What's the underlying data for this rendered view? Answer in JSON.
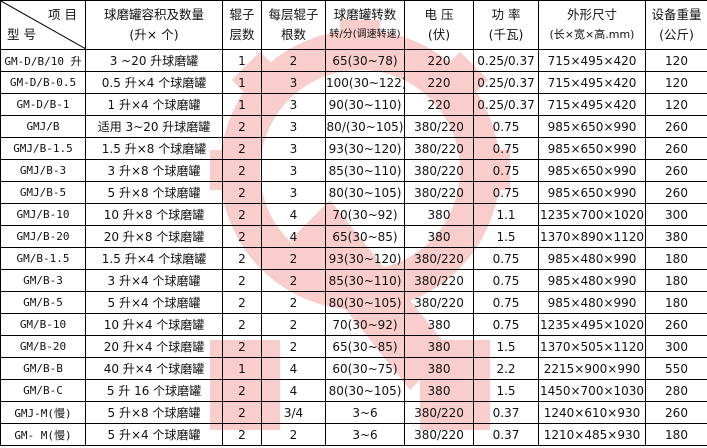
{
  "header": {
    "corner_top": "项 目",
    "corner_bottom": "型 号",
    "columns": [
      [
        "球磨罐容积及数量",
        "(升× 个)"
      ],
      [
        "辊子",
        "层数"
      ],
      [
        "每层辊子",
        "根数"
      ],
      [
        "球磨罐转数",
        "转/分(调速转速)"
      ],
      [
        "电 压",
        "(伏)"
      ],
      [
        "功 率",
        "(千瓦)"
      ],
      [
        "外形尺寸",
        "(长×宽×高.mm)"
      ],
      [
        "设备重量",
        "(公斤)"
      ]
    ]
  },
  "rows": [
    [
      "GM-D/B/10 升",
      "3 ~20 升球磨罐",
      "1",
      "2",
      "65(30~78)",
      "220",
      "0.25/0.37",
      "715×495×420",
      "120"
    ],
    [
      "GM-D/B-0.5",
      "0.5 升×4 个球磨罐",
      "1",
      "3",
      "100(30~122)",
      "220",
      "0.25/0.37",
      "715×495×420",
      "120"
    ],
    [
      "GM-D/B-1",
      "1 升×4 个球磨罐",
      "1",
      "3",
      "90(30~110)",
      "220",
      "0.25/0.37",
      "715×495×420",
      "120"
    ],
    [
      "GMJ/B",
      "适用 3~20 升球磨罐",
      "2",
      "3",
      "80/(30~105)",
      "380/220",
      "0.75",
      "985×650×990",
      "260"
    ],
    [
      "GMJ/B-1.5",
      "1.5 升×8 个球磨罐",
      "2",
      "3",
      "93(30~120)",
      "380/220",
      "0.75",
      "985×650×990",
      "260"
    ],
    [
      "GMJ/B-3",
      "3 升×8 个球磨罐",
      "2",
      "3",
      "85(30~110)",
      "380/220",
      "0.75",
      "985×650×990",
      "260"
    ],
    [
      "GMJ/B-5",
      "5 升×8 个球磨罐",
      "2",
      "3",
      "80(30~105)",
      "380/220",
      "0.75",
      "985×650×990",
      "260"
    ],
    [
      "GMJ/B-10",
      "10 升×8 个球磨罐",
      "2",
      "4",
      "70(30~92)",
      "380",
      "1.1",
      "1235×700×1020",
      "300"
    ],
    [
      "GMJ/B-20",
      "20 升×8 个球磨罐",
      "2",
      "4",
      "65(30~85)",
      "380",
      "1.5",
      "1370×890×1120",
      "380"
    ],
    [
      "GM/B-1.5",
      "1.5 升×4 个球磨罐",
      "2",
      "2",
      "93(30~120)",
      "380/220",
      "0.75",
      "985×480×990",
      "180"
    ],
    [
      "GM/B-3",
      "3 升×4 个球磨罐",
      "2",
      "2",
      "85(30~110)",
      "380/220",
      "0.75",
      "985×480×990",
      "180"
    ],
    [
      "GM/B-5",
      "5 升×4 个球磨罐",
      "2",
      "2",
      "80(30~105)",
      "380/220",
      "0.75",
      "985×480×990",
      "180"
    ],
    [
      "GM/B-10",
      "10 升×4 个球磨罐",
      "2",
      "2",
      "70(30~92)",
      "380",
      "0.75",
      "1235×495×1020",
      "260"
    ],
    [
      "GM/B-20",
      "20 升×4 个球磨罐",
      "2",
      "2",
      "65(30~85)",
      "380",
      "1.5",
      "1370×505×1120",
      "300"
    ],
    [
      "GM/B-B",
      "40 升×4 个球磨罐",
      "1",
      "4",
      "60(30~75)",
      "380",
      "2.2",
      "2215×900×990",
      "550"
    ],
    [
      "GM/B-C",
      "5 升 16 个球磨罐",
      "2",
      "4",
      "80(30~105)",
      "380",
      "1.5",
      "1450×700×1030",
      "280"
    ],
    [
      "GMJ-M(慢)",
      "5 升×8 个球磨罐",
      "2",
      "3/4",
      "3~6",
      "380/220",
      "0.37",
      "1240×610×930",
      "260"
    ],
    [
      "GM- M(慢)",
      "5 升×4 个球磨罐",
      "2",
      "2",
      "3~6",
      "380/220",
      "0.37",
      "1210×485×930",
      "180"
    ]
  ],
  "watermark": {
    "color": "#e0201a",
    "icon": "gear-logo-watermark"
  }
}
